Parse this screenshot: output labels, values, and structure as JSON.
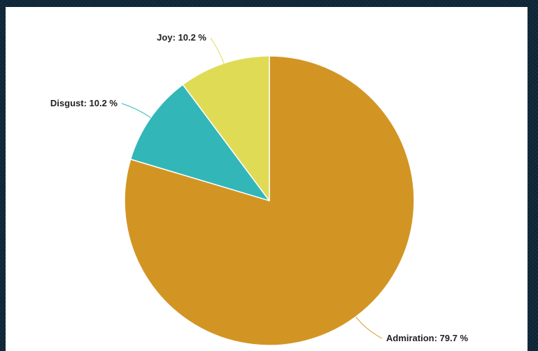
{
  "chart_data": {
    "type": "pie",
    "slices": [
      {
        "name": "Admiration",
        "value": 79.7,
        "label": "Admiration: 79.7 %",
        "color": "#d29524"
      },
      {
        "name": "Disgust",
        "value": 10.2,
        "label": "Disgust: 10.2 %",
        "color": "#33b6b8"
      },
      {
        "name": "Joy",
        "value": 10.2,
        "label": "Joy: 10.2 %",
        "color": "#e0db55"
      }
    ],
    "start_angle_deg": 0,
    "direction": "clockwise"
  },
  "colors": {
    "background": "#10283a",
    "panel": "#ffffff",
    "label_text": "#222222"
  }
}
